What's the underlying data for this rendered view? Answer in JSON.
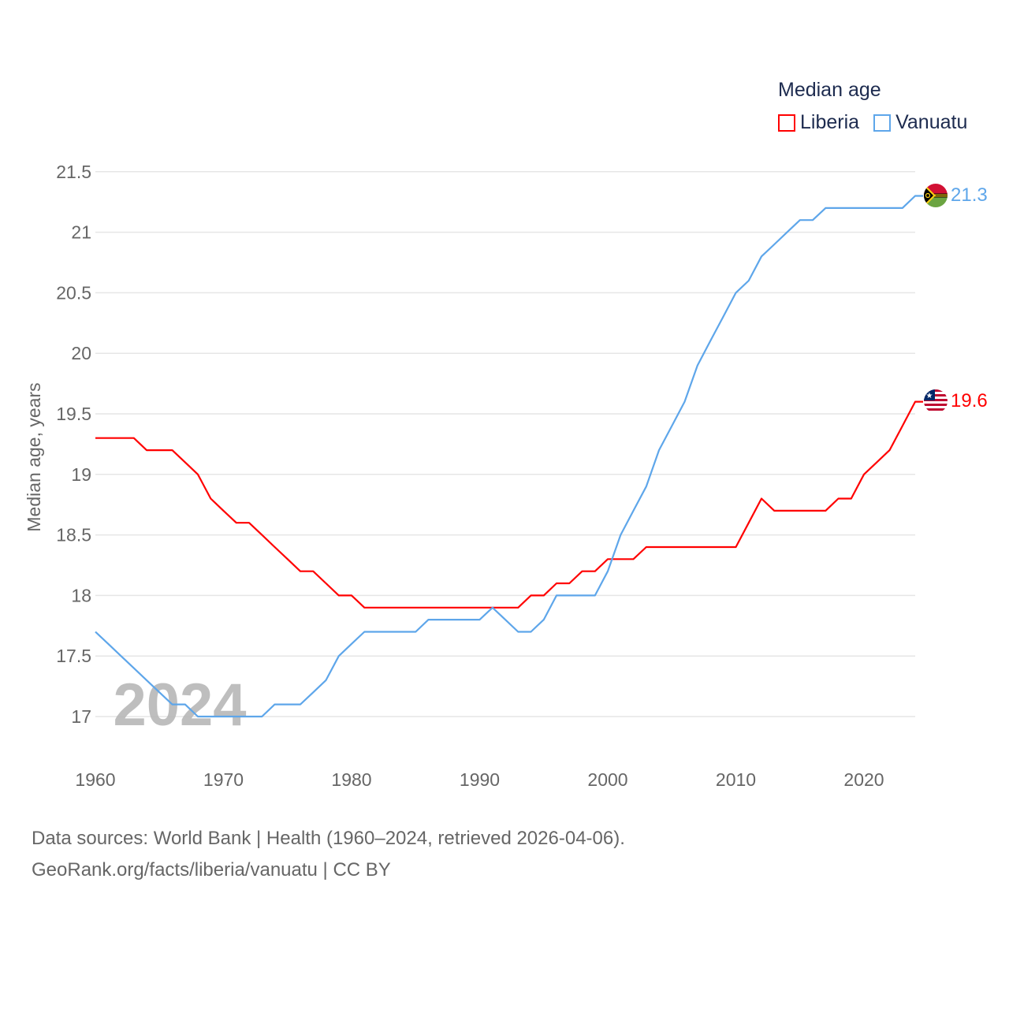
{
  "chart_data": {
    "type": "line",
    "legend_title": "Median age",
    "ylabel": "Median age, years",
    "xlabel": "",
    "ylim": [
      16.6,
      21.6
    ],
    "xlim": [
      1960,
      2024
    ],
    "yticks": [
      17,
      17.5,
      18,
      18.5,
      19,
      19.5,
      20,
      20.5,
      21,
      21.5
    ],
    "ytick_labels": [
      "17",
      "17.5",
      "18",
      "18.5",
      "19",
      "19.5",
      "20",
      "20.5",
      "21",
      "21.5"
    ],
    "xticks": [
      1960,
      1970,
      1980,
      1990,
      2000,
      2010,
      2020
    ],
    "xtick_labels": [
      "1960",
      "1970",
      "1980",
      "1990",
      "2000",
      "2010",
      "2020"
    ],
    "year_watermark": "2024",
    "grid": true,
    "legend_position": "top-right",
    "x": [
      1960,
      1961,
      1962,
      1963,
      1964,
      1965,
      1966,
      1967,
      1968,
      1969,
      1970,
      1971,
      1972,
      1973,
      1974,
      1975,
      1976,
      1977,
      1978,
      1979,
      1980,
      1981,
      1982,
      1983,
      1984,
      1985,
      1986,
      1987,
      1988,
      1989,
      1990,
      1991,
      1992,
      1993,
      1994,
      1995,
      1996,
      1997,
      1998,
      1999,
      2000,
      2001,
      2002,
      2003,
      2004,
      2005,
      2006,
      2007,
      2008,
      2009,
      2010,
      2011,
      2012,
      2013,
      2014,
      2015,
      2016,
      2017,
      2018,
      2019,
      2020,
      2021,
      2022,
      2023,
      2024
    ],
    "series": [
      {
        "name": "Liberia",
        "color": "#ff0000",
        "end_label": "19.6",
        "values": [
          19.3,
          19.3,
          19.3,
          19.3,
          19.2,
          19.2,
          19.2,
          19.1,
          19.0,
          18.8,
          18.7,
          18.6,
          18.6,
          18.5,
          18.4,
          18.3,
          18.2,
          18.2,
          18.1,
          18.0,
          18.0,
          17.9,
          17.9,
          17.9,
          17.9,
          17.9,
          17.9,
          17.9,
          17.9,
          17.9,
          17.9,
          17.9,
          17.9,
          17.9,
          18.0,
          18.0,
          18.1,
          18.1,
          18.2,
          18.2,
          18.3,
          18.3,
          18.3,
          18.4,
          18.4,
          18.4,
          18.4,
          18.4,
          18.4,
          18.4,
          18.4,
          18.6,
          18.8,
          18.7,
          18.7,
          18.7,
          18.7,
          18.7,
          18.8,
          18.8,
          19.0,
          19.1,
          19.2,
          19.4,
          19.6
        ]
      },
      {
        "name": "Vanuatu",
        "color": "#5ea6ea",
        "end_label": "21.3",
        "values": [
          17.7,
          17.6,
          17.5,
          17.4,
          17.3,
          17.2,
          17.1,
          17.1,
          17.0,
          17.0,
          17.0,
          17.0,
          17.0,
          17.0,
          17.1,
          17.1,
          17.1,
          17.2,
          17.3,
          17.5,
          17.6,
          17.7,
          17.7,
          17.7,
          17.7,
          17.7,
          17.8,
          17.8,
          17.8,
          17.8,
          17.8,
          17.9,
          17.8,
          17.7,
          17.7,
          17.8,
          18.0,
          18.0,
          18.0,
          18.0,
          18.2,
          18.5,
          18.7,
          18.9,
          19.2,
          19.4,
          19.6,
          19.9,
          20.1,
          20.3,
          20.5,
          20.6,
          20.8,
          20.9,
          21.0,
          21.1,
          21.1,
          21.2,
          21.2,
          21.2,
          21.2,
          21.2,
          21.2,
          21.2,
          21.3
        ]
      }
    ]
  },
  "footer": {
    "line1": "Data sources: World Bank | Health (1960–2024, retrieved 2026-04-06).",
    "line2": "GeoRank.org/facts/liberia/vanuatu | CC BY"
  }
}
